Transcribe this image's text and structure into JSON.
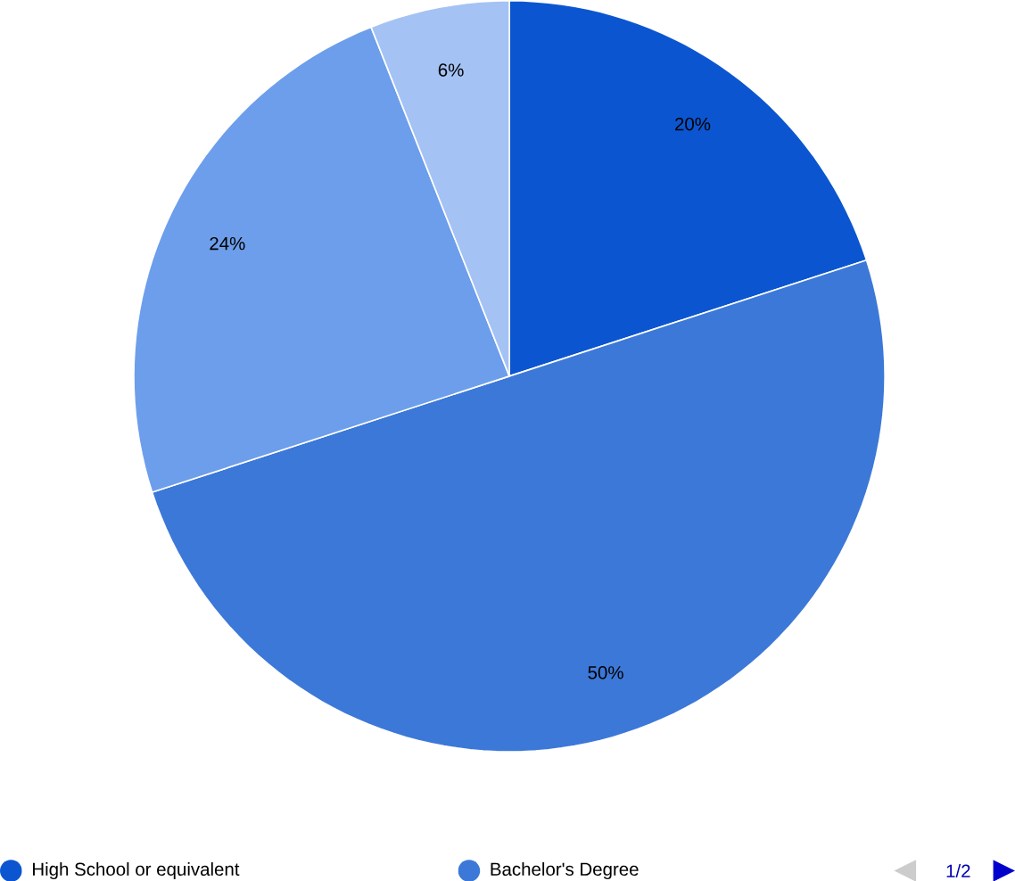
{
  "chart_data": {
    "type": "pie",
    "categories": [
      "High School or equivalent",
      "Bachelor's Degree",
      null,
      null
    ],
    "values": [
      20,
      50,
      24,
      6
    ],
    "colors": [
      "#0b56d0",
      "#3c78d8",
      "#6d9eeb",
      "#a4c2f4"
    ],
    "value_labels": [
      "20%",
      "50%",
      "24%",
      "6%"
    ],
    "legend": "bottom",
    "annotations": [
      "1/2"
    ]
  }
}
